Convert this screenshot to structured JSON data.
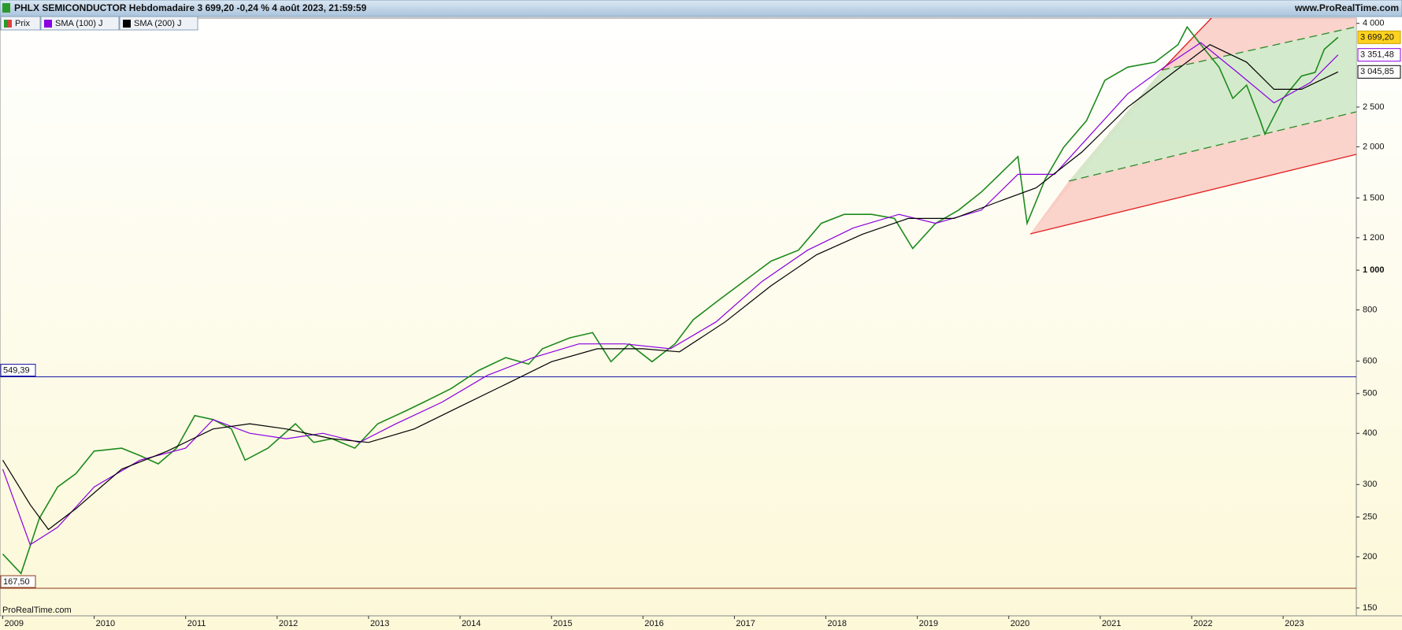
{
  "chart_data": {
    "type": "line",
    "title": "PHLX SEMICONDUCTOR Hebdomadaire 3 699,20 -0,24 % 4 août 2023, 21:59:59",
    "site": "www.ProRealTime.com",
    "watermark": "ProRealTime.com",
    "log_scale": true,
    "xlim": [
      2008.97,
      2023.8
    ],
    "xticks": [
      2009,
      2010,
      2011,
      2012,
      2013,
      2014,
      2015,
      2016,
      2017,
      2018,
      2019,
      2020,
      2021,
      2022,
      2023
    ],
    "ylim": [
      143.5,
      4120
    ],
    "yticks": [
      150,
      200,
      250,
      300,
      400,
      500,
      600,
      800,
      {
        "value": 1000,
        "label": "1 000"
      },
      {
        "value": 1200,
        "label": "1 200"
      },
      {
        "value": 1500,
        "label": "1 500"
      },
      {
        "value": 2000,
        "label": "2 000"
      },
      {
        "value": 2500,
        "label": "2 500"
      },
      {
        "value": 4000,
        "label": "4 000"
      }
    ],
    "hlines": [
      {
        "value": 549.39,
        "label": "549,39",
        "color": "#1a1aa6"
      },
      {
        "value": 167.5,
        "label": "167,50",
        "color": "#8b3a1a"
      }
    ],
    "series": [
      {
        "name": "Prix",
        "color": "#1e8a1e",
        "last_label": "3 699,20",
        "x": [
          2009.0,
          2009.2,
          2009.4,
          2009.6,
          2009.8,
          2010.0,
          2010.3,
          2010.5,
          2010.7,
          2010.9,
          2011.1,
          2011.3,
          2011.5,
          2011.65,
          2011.9,
          2012.2,
          2012.4,
          2012.6,
          2012.85,
          2013.1,
          2013.4,
          2013.6,
          2013.9,
          2014.2,
          2014.5,
          2014.75,
          2014.9,
          2015.2,
          2015.45,
          2015.65,
          2015.85,
          2016.1,
          2016.35,
          2016.55,
          2016.8,
          2017.1,
          2017.4,
          2017.7,
          2017.95,
          2018.2,
          2018.5,
          2018.75,
          2018.95,
          2019.2,
          2019.45,
          2019.7,
          2019.95,
          2020.1,
          2020.2,
          2020.4,
          2020.6,
          2020.85,
          2021.05,
          2021.3,
          2021.6,
          2021.85,
          2021.95,
          2022.1,
          2022.3,
          2022.45,
          2022.6,
          2022.75,
          2022.8,
          2023.0,
          2023.2,
          2023.35,
          2023.45,
          2023.6
        ],
        "values": [
          203,
          182,
          248,
          296,
          319,
          362,
          368,
          353,
          337,
          368,
          442,
          432,
          410,
          344,
          368,
          422,
          380,
          388,
          368,
          422,
          453,
          476,
          514,
          569,
          612,
          590,
          643,
          684,
          704,
          598,
          661,
          598,
          661,
          757,
          836,
          938,
          1052,
          1119,
          1301,
          1368,
          1368,
          1337,
          1130,
          1301,
          1401,
          1551,
          1757,
          1893,
          1301,
          1671,
          1994,
          2316,
          2904,
          3128,
          3218,
          3549,
          3920,
          3549,
          3128,
          2625,
          2827,
          2316,
          2148,
          2625,
          2975,
          3038,
          3460,
          3699.2
        ]
      },
      {
        "name": "SMA (100) J",
        "color": "#8a00e0",
        "last_label": "3 351,48",
        "x": [
          2009.0,
          2009.3,
          2009.6,
          2010.0,
          2010.5,
          2011.0,
          2011.3,
          2011.7,
          2012.1,
          2012.5,
          2012.9,
          2013.3,
          2013.8,
          2014.3,
          2014.8,
          2015.3,
          2015.8,
          2016.3,
          2016.8,
          2017.3,
          2017.8,
          2018.3,
          2018.8,
          2019.2,
          2019.7,
          2020.1,
          2020.5,
          2020.9,
          2021.3,
          2021.7,
          2022.1,
          2022.5,
          2022.9,
          2023.3,
          2023.6
        ],
        "values": [
          327,
          214,
          236,
          296,
          344,
          368,
          432,
          400,
          388,
          400,
          380,
          422,
          476,
          554,
          612,
          661,
          661,
          643,
          748,
          938,
          1119,
          1268,
          1368,
          1301,
          1401,
          1713,
          1713,
          2148,
          2692,
          3128,
          3590,
          3038,
          2560,
          2870,
          3351.48
        ]
      },
      {
        "name": "SMA (200) J",
        "color": "#000000",
        "last_label": "3 045,85",
        "x": [
          2009.0,
          2009.3,
          2009.5,
          2009.8,
          2010.3,
          2010.8,
          2011.3,
          2011.7,
          2012.1,
          2012.6,
          2013.0,
          2013.5,
          2014.0,
          2014.5,
          2015.0,
          2015.5,
          2016.0,
          2016.4,
          2016.9,
          2017.4,
          2017.9,
          2018.4,
          2018.9,
          2019.4,
          2019.9,
          2020.3,
          2020.8,
          2021.3,
          2021.8,
          2022.2,
          2022.6,
          2022.9,
          2023.2,
          2023.6
        ],
        "values": [
          344,
          268,
          233,
          262,
          327,
          362,
          410,
          422,
          410,
          388,
          380,
          410,
          465,
          527,
          598,
          643,
          643,
          632,
          748,
          916,
          1091,
          1224,
          1337,
          1337,
          1473,
          1588,
          1942,
          2497,
          3038,
          3549,
          3218,
          2762,
          2762,
          3045.85
        ]
      }
    ]
  }
}
